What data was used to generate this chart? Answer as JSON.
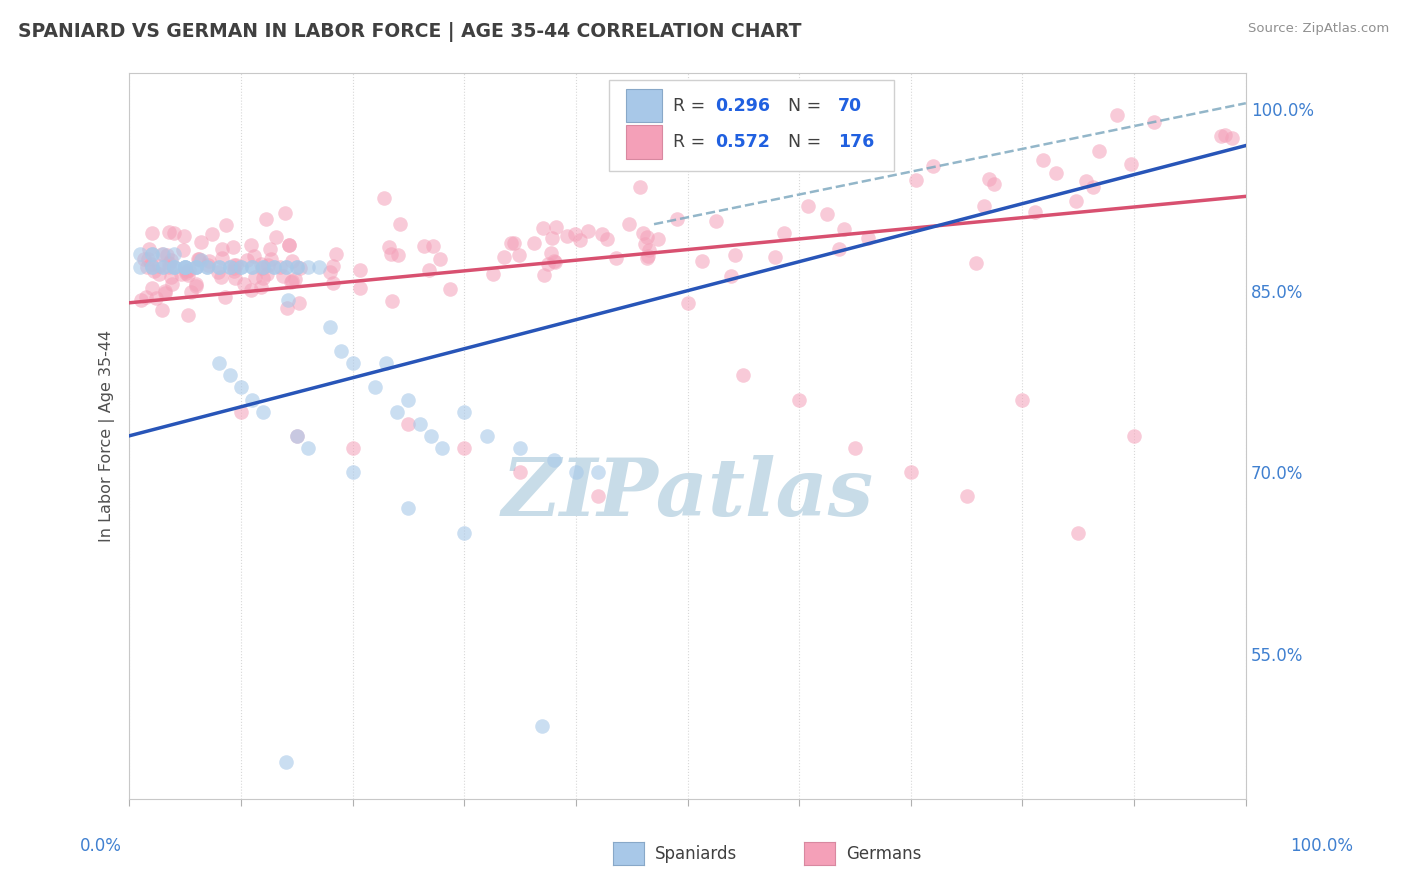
{
  "title": "SPANIARD VS GERMAN IN LABOR FORCE | AGE 35-44 CORRELATION CHART",
  "source": "Source: ZipAtlas.com",
  "ylabel": "In Labor Force | Age 35-44",
  "right_yticks": [
    0.55,
    0.7,
    0.85,
    1.0
  ],
  "right_yticklabels": [
    "55.0%",
    "70.0%",
    "85.0%",
    "100.0%"
  ],
  "xlim": [
    0.0,
    1.0
  ],
  "ylim": [
    0.43,
    1.03
  ],
  "spaniards_r": 0.296,
  "spaniards_n": 70,
  "germans_r": 0.572,
  "germans_n": 176,
  "spaniard_color": "#a8c8e8",
  "german_color": "#f4a0b8",
  "spaniard_line_color": "#2855b8",
  "german_line_color": "#d85070",
  "dash_color": "#80aac0",
  "watermark_text": "ZIPatlas",
  "watermark_color": "#c8dce8",
  "title_color": "#404040",
  "source_color": "#909090",
  "grid_color": "#d8d8d8",
  "right_tick_color": "#4080d0",
  "xtick_label_color": "#4080d0",
  "legend_text_color": "#404040",
  "legend_value_color": "#2060e0"
}
